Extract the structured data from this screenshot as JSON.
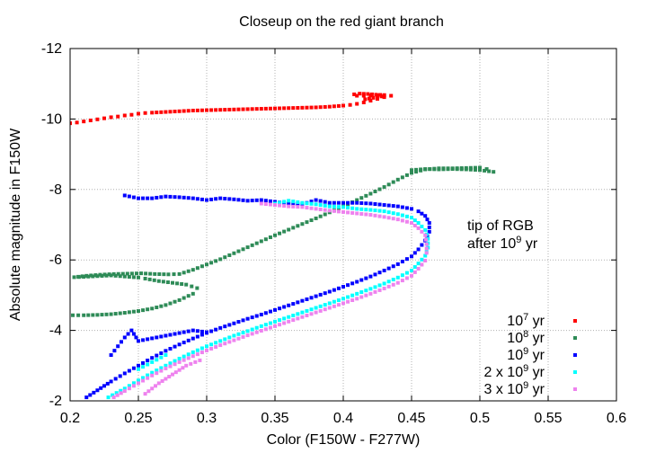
{
  "chart_data": {
    "type": "scatter",
    "title": "Closeup on the red giant branch",
    "xlabel": "Color (F150W - F277W)",
    "ylabel": "Absolute magnitude in F150W",
    "xlim": [
      0.2,
      0.6
    ],
    "ylim": [
      -2,
      -12
    ],
    "y_inverted": true,
    "grid": true,
    "legend_placement": "bottom-right",
    "x_ticks": [
      "0.2",
      "0.25",
      "0.3",
      "0.35",
      "0.4",
      "0.45",
      "0.5",
      "0.55",
      "0.6"
    ],
    "y_ticks": [
      "-2",
      "-4",
      "-6",
      "-8",
      "-10",
      "-12"
    ],
    "annotation": {
      "line1": "tip of RGB",
      "line2_prefix": "after 10",
      "line2_sup": "9",
      "line2_suffix": " yr",
      "x": 0.487,
      "y": -6.6
    },
    "series": [
      {
        "name": "10^7 yr",
        "label_base": "10",
        "label_sup": "7",
        "label_suffix": " yr",
        "label_prefix": "",
        "color": "#ff0000",
        "points": [
          [
            0.2,
            -9.88
          ],
          [
            0.205,
            -9.9
          ],
          [
            0.21,
            -9.93
          ],
          [
            0.215,
            -9.96
          ],
          [
            0.22,
            -9.99
          ],
          [
            0.225,
            -10.02
          ],
          [
            0.23,
            -10.05
          ],
          [
            0.235,
            -10.07
          ],
          [
            0.24,
            -10.1
          ],
          [
            0.245,
            -10.12
          ],
          [
            0.25,
            -10.15
          ],
          [
            0.255,
            -10.17
          ],
          [
            0.26,
            -10.18
          ],
          [
            0.27,
            -10.2
          ],
          [
            0.28,
            -10.22
          ],
          [
            0.29,
            -10.24
          ],
          [
            0.3,
            -10.25
          ],
          [
            0.31,
            -10.26
          ],
          [
            0.32,
            -10.27
          ],
          [
            0.33,
            -10.28
          ],
          [
            0.34,
            -10.29
          ],
          [
            0.35,
            -10.3
          ],
          [
            0.36,
            -10.31
          ],
          [
            0.37,
            -10.32
          ],
          [
            0.38,
            -10.33
          ],
          [
            0.39,
            -10.35
          ],
          [
            0.4,
            -10.38
          ],
          [
            0.405,
            -10.4
          ],
          [
            0.41,
            -10.43
          ],
          [
            0.415,
            -10.47
          ],
          [
            0.42,
            -10.52
          ],
          [
            0.425,
            -10.57
          ],
          [
            0.43,
            -10.62
          ],
          [
            0.435,
            -10.66
          ],
          [
            0.43,
            -10.67
          ],
          [
            0.425,
            -10.67
          ],
          [
            0.42,
            -10.67
          ],
          [
            0.415,
            -10.66
          ],
          [
            0.41,
            -10.66
          ],
          [
            0.408,
            -10.7
          ],
          [
            0.412,
            -10.72
          ],
          [
            0.418,
            -10.71
          ],
          [
            0.424,
            -10.69
          ],
          [
            0.43,
            -10.68
          ],
          [
            0.428,
            -10.64
          ],
          [
            0.422,
            -10.6
          ],
          [
            0.416,
            -10.56
          ]
        ]
      },
      {
        "name": "10^8 yr",
        "label_base": "10",
        "label_sup": "8",
        "label_suffix": " yr",
        "label_prefix": "",
        "color": "#2e8b57",
        "points": [
          [
            0.202,
            -4.43
          ],
          [
            0.21,
            -4.43
          ],
          [
            0.22,
            -4.44
          ],
          [
            0.23,
            -4.46
          ],
          [
            0.24,
            -4.5
          ],
          [
            0.25,
            -4.55
          ],
          [
            0.26,
            -4.62
          ],
          [
            0.27,
            -4.72
          ],
          [
            0.28,
            -4.86
          ],
          [
            0.29,
            -5.04
          ],
          [
            0.293,
            -5.2
          ],
          [
            0.285,
            -5.3
          ],
          [
            0.275,
            -5.35
          ],
          [
            0.265,
            -5.4
          ],
          [
            0.255,
            -5.47
          ],
          [
            0.25,
            -5.5
          ],
          [
            0.24,
            -5.53
          ],
          [
            0.23,
            -5.56
          ],
          [
            0.22,
            -5.54
          ],
          [
            0.21,
            -5.52
          ],
          [
            0.203,
            -5.51
          ],
          [
            0.212,
            -5.55
          ],
          [
            0.222,
            -5.58
          ],
          [
            0.232,
            -5.6
          ],
          [
            0.242,
            -5.61
          ],
          [
            0.252,
            -5.62
          ],
          [
            0.262,
            -5.6
          ],
          [
            0.272,
            -5.59
          ],
          [
            0.28,
            -5.6
          ],
          [
            0.29,
            -5.72
          ],
          [
            0.3,
            -5.87
          ],
          [
            0.31,
            -6.02
          ],
          [
            0.32,
            -6.19
          ],
          [
            0.33,
            -6.36
          ],
          [
            0.34,
            -6.53
          ],
          [
            0.35,
            -6.7
          ],
          [
            0.36,
            -6.86
          ],
          [
            0.37,
            -7.02
          ],
          [
            0.38,
            -7.18
          ],
          [
            0.39,
            -7.35
          ],
          [
            0.4,
            -7.52
          ],
          [
            0.41,
            -7.7
          ],
          [
            0.42,
            -7.88
          ],
          [
            0.43,
            -8.07
          ],
          [
            0.44,
            -8.28
          ],
          [
            0.45,
            -8.47
          ],
          [
            0.46,
            -8.57
          ],
          [
            0.47,
            -8.6
          ],
          [
            0.48,
            -8.6
          ],
          [
            0.49,
            -8.61
          ],
          [
            0.5,
            -8.62
          ],
          [
            0.505,
            -8.58
          ],
          [
            0.51,
            -8.5
          ],
          [
            0.5,
            -8.55
          ],
          [
            0.49,
            -8.57
          ],
          [
            0.48,
            -8.58
          ],
          [
            0.47,
            -8.57
          ],
          [
            0.46,
            -8.58
          ],
          [
            0.45,
            -8.55
          ]
        ]
      },
      {
        "name": "10^9 yr",
        "label_base": "10",
        "label_sup": "9",
        "label_suffix": " yr",
        "label_prefix": "",
        "color": "#0000ff",
        "points": [
          [
            0.212,
            -2.1
          ],
          [
            0.22,
            -2.3
          ],
          [
            0.23,
            -2.55
          ],
          [
            0.24,
            -2.78
          ],
          [
            0.25,
            -3.0
          ],
          [
            0.26,
            -3.22
          ],
          [
            0.27,
            -3.42
          ],
          [
            0.28,
            -3.6
          ],
          [
            0.29,
            -3.77
          ],
          [
            0.3,
            -3.93
          ],
          [
            0.31,
            -4.07
          ],
          [
            0.32,
            -4.2
          ],
          [
            0.33,
            -4.33
          ],
          [
            0.34,
            -4.45
          ],
          [
            0.35,
            -4.58
          ],
          [
            0.36,
            -4.71
          ],
          [
            0.37,
            -4.84
          ],
          [
            0.38,
            -4.97
          ],
          [
            0.39,
            -5.1
          ],
          [
            0.4,
            -5.24
          ],
          [
            0.41,
            -5.38
          ],
          [
            0.42,
            -5.53
          ],
          [
            0.43,
            -5.7
          ],
          [
            0.44,
            -5.88
          ],
          [
            0.45,
            -6.1
          ],
          [
            0.455,
            -6.3
          ],
          [
            0.46,
            -6.55
          ],
          [
            0.463,
            -6.8
          ],
          [
            0.463,
            -7.05
          ],
          [
            0.46,
            -7.25
          ],
          [
            0.455,
            -7.38
          ],
          [
            0.45,
            -7.45
          ],
          [
            0.44,
            -7.52
          ],
          [
            0.43,
            -7.56
          ],
          [
            0.42,
            -7.6
          ],
          [
            0.41,
            -7.62
          ],
          [
            0.4,
            -7.62
          ],
          [
            0.39,
            -7.62
          ],
          [
            0.38,
            -7.7
          ],
          [
            0.37,
            -7.58
          ],
          [
            0.36,
            -7.6
          ],
          [
            0.35,
            -7.65
          ],
          [
            0.34,
            -7.7
          ],
          [
            0.33,
            -7.68
          ],
          [
            0.32,
            -7.72
          ],
          [
            0.31,
            -7.75
          ],
          [
            0.3,
            -7.7
          ],
          [
            0.29,
            -7.75
          ],
          [
            0.28,
            -7.78
          ],
          [
            0.27,
            -7.8
          ],
          [
            0.26,
            -7.75
          ],
          [
            0.25,
            -7.75
          ],
          [
            0.24,
            -7.83
          ],
          [
            0.23,
            -3.3
          ],
          [
            0.235,
            -3.55
          ],
          [
            0.24,
            -3.8
          ],
          [
            0.245,
            -4.0
          ],
          [
            0.25,
            -3.7
          ],
          [
            0.27,
            -3.85
          ],
          [
            0.29,
            -4.0
          ],
          [
            0.3,
            -3.95
          ]
        ]
      },
      {
        "name": "2 x 10^9 yr",
        "label_base": "10",
        "label_sup": "9",
        "label_suffix": " yr",
        "label_prefix": "2 x ",
        "color": "#00ffff",
        "points": [
          [
            0.228,
            -2.1
          ],
          [
            0.24,
            -2.35
          ],
          [
            0.25,
            -2.58
          ],
          [
            0.26,
            -2.8
          ],
          [
            0.27,
            -3.0
          ],
          [
            0.28,
            -3.2
          ],
          [
            0.29,
            -3.38
          ],
          [
            0.3,
            -3.55
          ],
          [
            0.31,
            -3.7
          ],
          [
            0.32,
            -3.85
          ],
          [
            0.33,
            -3.98
          ],
          [
            0.34,
            -4.12
          ],
          [
            0.35,
            -4.25
          ],
          [
            0.36,
            -4.38
          ],
          [
            0.37,
            -4.51
          ],
          [
            0.38,
            -4.64
          ],
          [
            0.39,
            -4.77
          ],
          [
            0.4,
            -4.9
          ],
          [
            0.41,
            -5.04
          ],
          [
            0.42,
            -5.18
          ],
          [
            0.43,
            -5.33
          ],
          [
            0.44,
            -5.5
          ],
          [
            0.45,
            -5.7
          ],
          [
            0.455,
            -5.9
          ],
          [
            0.46,
            -6.12
          ],
          [
            0.462,
            -6.35
          ],
          [
            0.462,
            -6.6
          ],
          [
            0.46,
            -6.85
          ],
          [
            0.455,
            -7.05
          ],
          [
            0.45,
            -7.2
          ],
          [
            0.44,
            -7.3
          ],
          [
            0.43,
            -7.38
          ],
          [
            0.42,
            -7.42
          ],
          [
            0.41,
            -7.45
          ],
          [
            0.4,
            -7.5
          ],
          [
            0.39,
            -7.52
          ],
          [
            0.38,
            -7.58
          ],
          [
            0.37,
            -7.62
          ],
          [
            0.36,
            -7.68
          ],
          [
            0.35,
            -7.6
          ],
          [
            0.25,
            -2.9
          ],
          [
            0.26,
            -3.1
          ],
          [
            0.27,
            -3.3
          ]
        ]
      },
      {
        "name": "3 x 10^9 yr",
        "label_base": "10",
        "label_sup": "9",
        "label_suffix": " yr",
        "label_prefix": "3 x ",
        "color": "#ee82ee",
        "points": [
          [
            0.232,
            -2.1
          ],
          [
            0.24,
            -2.28
          ],
          [
            0.25,
            -2.5
          ],
          [
            0.26,
            -2.72
          ],
          [
            0.27,
            -2.92
          ],
          [
            0.28,
            -3.1
          ],
          [
            0.29,
            -3.27
          ],
          [
            0.3,
            -3.43
          ],
          [
            0.31,
            -3.58
          ],
          [
            0.32,
            -3.72
          ],
          [
            0.33,
            -3.86
          ],
          [
            0.34,
            -3.99
          ],
          [
            0.35,
            -4.12
          ],
          [
            0.36,
            -4.25
          ],
          [
            0.37,
            -4.38
          ],
          [
            0.38,
            -4.51
          ],
          [
            0.39,
            -4.64
          ],
          [
            0.4,
            -4.77
          ],
          [
            0.41,
            -4.9
          ],
          [
            0.42,
            -5.04
          ],
          [
            0.43,
            -5.19
          ],
          [
            0.44,
            -5.35
          ],
          [
            0.45,
            -5.55
          ],
          [
            0.455,
            -5.75
          ],
          [
            0.46,
            -5.98
          ],
          [
            0.461,
            -6.2
          ],
          [
            0.461,
            -6.45
          ],
          [
            0.46,
            -6.7
          ],
          [
            0.455,
            -6.9
          ],
          [
            0.45,
            -7.05
          ],
          [
            0.44,
            -7.15
          ],
          [
            0.43,
            -7.22
          ],
          [
            0.42,
            -7.28
          ],
          [
            0.41,
            -7.32
          ],
          [
            0.4,
            -7.36
          ],
          [
            0.39,
            -7.4
          ],
          [
            0.38,
            -7.45
          ],
          [
            0.37,
            -7.5
          ],
          [
            0.36,
            -7.52
          ],
          [
            0.35,
            -7.56
          ],
          [
            0.34,
            -7.6
          ],
          [
            0.255,
            -2.2
          ],
          [
            0.265,
            -2.5
          ],
          [
            0.275,
            -2.75
          ],
          [
            0.285,
            -3.0
          ],
          [
            0.295,
            -3.15
          ]
        ]
      }
    ]
  }
}
